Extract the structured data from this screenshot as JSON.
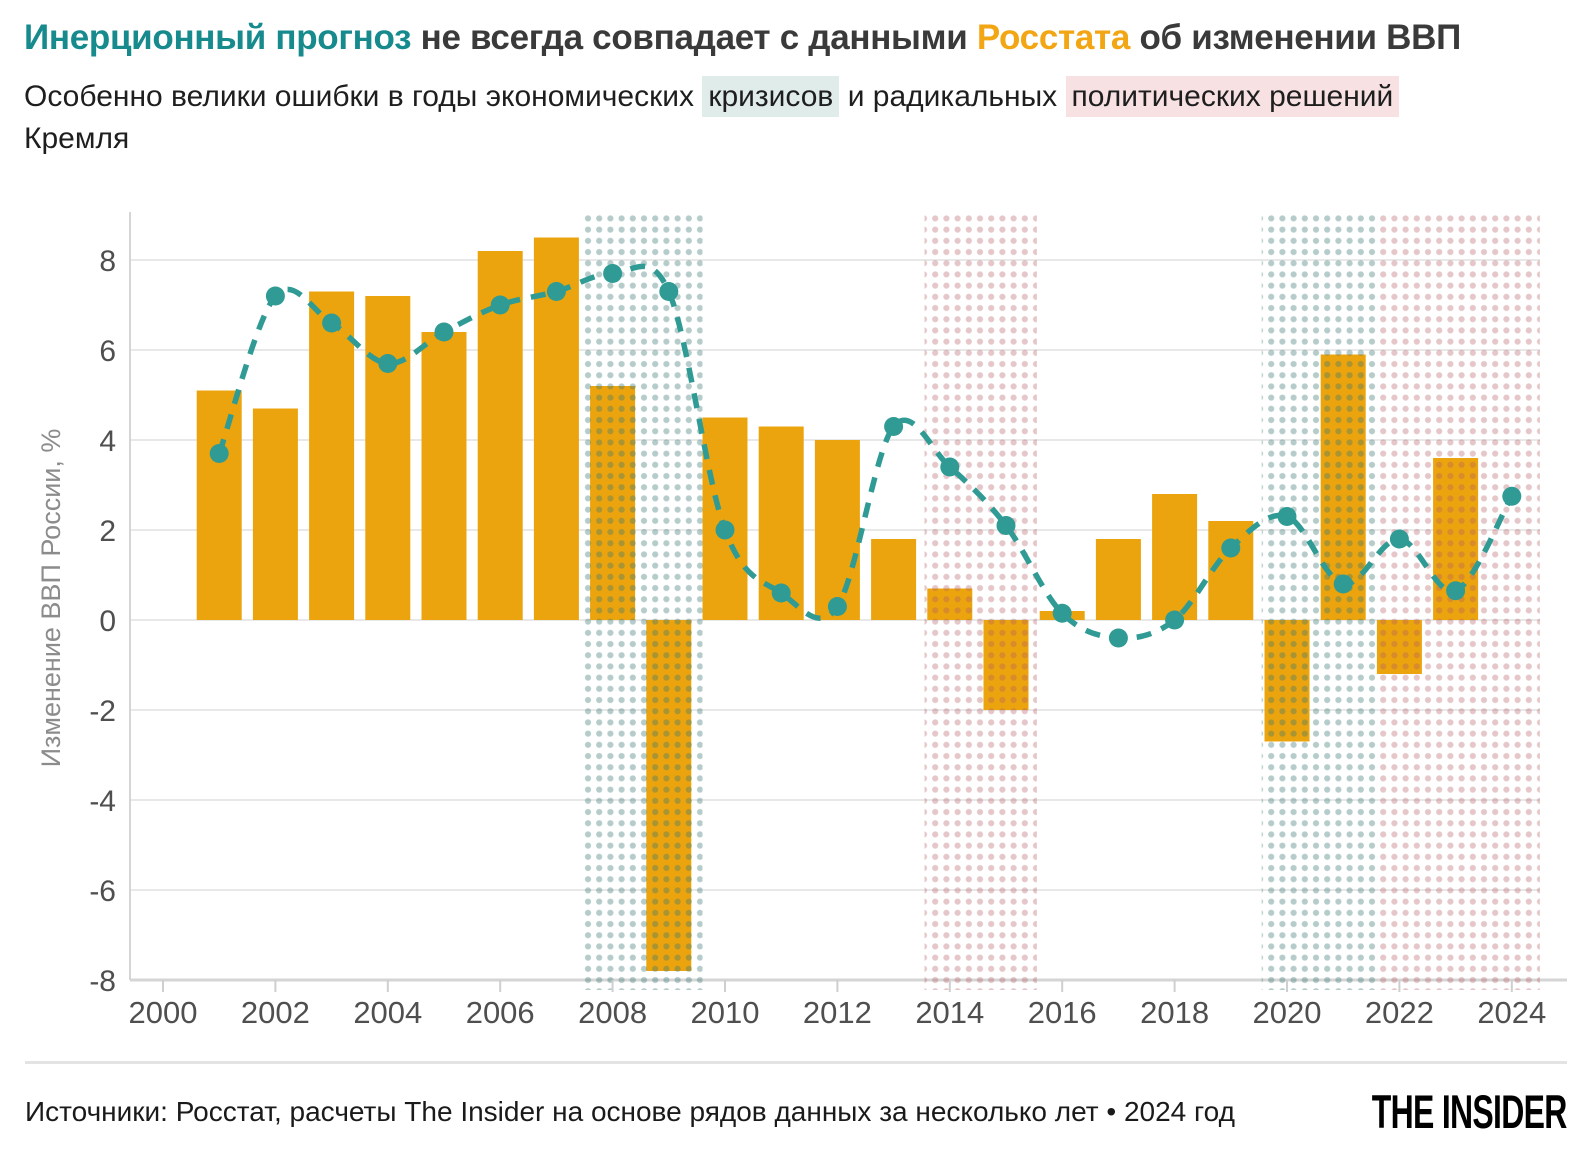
{
  "header": {
    "title_parts": [
      {
        "text": "Инерционный прогноз",
        "style": "teal"
      },
      {
        "text": " не всегда совпадает с данными ",
        "style": "plain"
      },
      {
        "text": "Росстата",
        "style": "orange"
      },
      {
        "text": " об изменении ВВП",
        "style": "plain"
      }
    ],
    "subtitle_parts": [
      {
        "text": "Особенно велики ошибки в годы экономических ",
        "style": "plain"
      },
      {
        "text": "кризисов",
        "style": "teal-highlight"
      },
      {
        "text": " и радикальных ",
        "style": "plain"
      },
      {
        "text": "политических решений",
        "style": "pink-highlight"
      }
    ],
    "subtitle_line2": "Кремля"
  },
  "chart_data": {
    "type": "bar+line",
    "ylabel": "Изменение ВВП России, %",
    "ylim": [
      -8,
      9
    ],
    "yticks": [
      -8,
      -6,
      -4,
      -2,
      0,
      2,
      4,
      6,
      8
    ],
    "xticks": [
      2000,
      2002,
      2004,
      2006,
      2008,
      2010,
      2012,
      2014,
      2016,
      2018,
      2020,
      2022,
      2024
    ],
    "grid": true,
    "bars": {
      "name": "Росстат",
      "points": [
        {
          "year": 2001,
          "value": 5.1
        },
        {
          "year": 2002,
          "value": 4.7
        },
        {
          "year": 2003,
          "value": 7.3
        },
        {
          "year": 2004,
          "value": 7.2
        },
        {
          "year": 2005,
          "value": 6.4
        },
        {
          "year": 2006,
          "value": 8.2
        },
        {
          "year": 2007,
          "value": 8.5
        },
        {
          "year": 2008,
          "value": 5.2
        },
        {
          "year": 2009,
          "value": -7.8
        },
        {
          "year": 2010,
          "value": 4.5
        },
        {
          "year": 2011,
          "value": 4.3
        },
        {
          "year": 2012,
          "value": 4.0
        },
        {
          "year": 2013,
          "value": 1.8
        },
        {
          "year": 2014,
          "value": 0.7
        },
        {
          "year": 2015,
          "value": -2.0
        },
        {
          "year": 2016,
          "value": 0.2
        },
        {
          "year": 2017,
          "value": 1.8
        },
        {
          "year": 2018,
          "value": 2.8
        },
        {
          "year": 2019,
          "value": 2.2
        },
        {
          "year": 2020,
          "value": -2.7
        },
        {
          "year": 2021,
          "value": 5.9
        },
        {
          "year": 2022,
          "value": -1.2
        },
        {
          "year": 2023,
          "value": 3.6
        }
      ]
    },
    "line": {
      "name": "Инерционный прогноз",
      "points": [
        {
          "year": 2001,
          "value": 3.7
        },
        {
          "year": 2002,
          "value": 7.2
        },
        {
          "year": 2003,
          "value": 6.6
        },
        {
          "year": 2004,
          "value": 5.7
        },
        {
          "year": 2005,
          "value": 6.4
        },
        {
          "year": 2006,
          "value": 7.0
        },
        {
          "year": 2007,
          "value": 7.3
        },
        {
          "year": 2008,
          "value": 7.7
        },
        {
          "year": 2009,
          "value": 7.3
        },
        {
          "year": 2010,
          "value": 2.0
        },
        {
          "year": 2011,
          "value": 0.6
        },
        {
          "year": 2012,
          "value": 0.3
        },
        {
          "year": 2013,
          "value": 4.3
        },
        {
          "year": 2014,
          "value": 3.4
        },
        {
          "year": 2015,
          "value": 2.1
        },
        {
          "year": 2016,
          "value": 0.15
        },
        {
          "year": 2017,
          "value": -0.4
        },
        {
          "year": 2018,
          "value": 0.0
        },
        {
          "year": 2019,
          "value": 1.6
        },
        {
          "year": 2020,
          "value": 2.3
        },
        {
          "year": 2021,
          "value": 0.8
        },
        {
          "year": 2022,
          "value": 1.8
        },
        {
          "year": 2023,
          "value": 0.65
        },
        {
          "year": 2024,
          "value": 2.75
        }
      ]
    },
    "bands": [
      {
        "from": 2007.5,
        "to": 2009.6,
        "kind": "teal"
      },
      {
        "from": 2013.55,
        "to": 2015.55,
        "kind": "pink"
      },
      {
        "from": 2019.55,
        "to": 2021.6,
        "kind": "teal"
      },
      {
        "from": 2021.6,
        "to": 2024.5,
        "kind": "pink"
      }
    ]
  },
  "footer": {
    "source": "Источники: Росстат, расчеты The Insider на основе рядов данных за несколько лет • 2024 год",
    "logo": "THE INSIDER"
  },
  "colors": {
    "title_teal": "#168A8C",
    "title_orange": "#F2A614",
    "bar": "#EBA40D",
    "line": "#2F9B94",
    "band_teal_dot": "rgba(61,121,115,0.38)",
    "band_pink_dot": "rgba(180,90,98,0.34)",
    "grid": "#E8E8E8",
    "axis": "#D5D5D5",
    "tick_label": "#4F4F4F",
    "axis_title": "#8C8C8C"
  }
}
